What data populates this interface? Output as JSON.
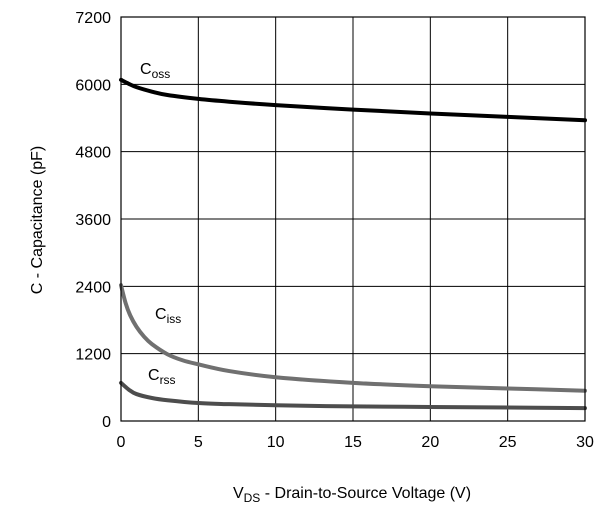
{
  "chart_data": {
    "type": "line",
    "xlabel_main": "V",
    "xlabel_sub": "DS",
    "xlabel_rest": " - Drain-to-Source Voltage (V)",
    "ylabel": "C - Capacitance (pF)",
    "xlim": [
      0,
      30
    ],
    "ylim": [
      0,
      7200
    ],
    "xticks": [
      "0",
      "5",
      "10",
      "15",
      "20",
      "25",
      "30"
    ],
    "yticks": [
      "0",
      "1200",
      "2400",
      "3600",
      "4800",
      "6000",
      "7200"
    ],
    "grid": true,
    "series": [
      {
        "name_main": "C",
        "name_sub": "oss",
        "color": "#000000",
        "x": [
          0,
          0.5,
          1,
          2,
          3,
          5,
          7,
          10,
          15,
          20,
          25,
          30
        ],
        "y": [
          6080,
          6010,
          5950,
          5870,
          5810,
          5740,
          5690,
          5630,
          5550,
          5480,
          5420,
          5360
        ]
      },
      {
        "name_main": "C",
        "name_sub": "iss",
        "color": "#707070",
        "x": [
          0,
          0.3,
          0.6,
          1,
          1.5,
          2,
          3,
          4,
          5,
          7,
          10,
          15,
          20,
          25,
          30
        ],
        "y": [
          2420,
          2100,
          1880,
          1680,
          1500,
          1370,
          1190,
          1080,
          1010,
          890,
          780,
          680,
          620,
          580,
          540
        ]
      },
      {
        "name_main": "C",
        "name_sub": "rss",
        "color": "#4d4d4d",
        "x": [
          0,
          0.5,
          1,
          2,
          3,
          5,
          7,
          10,
          15,
          20,
          25,
          30
        ],
        "y": [
          680,
          560,
          480,
          410,
          370,
          320,
          300,
          280,
          260,
          250,
          240,
          230
        ]
      }
    ]
  }
}
